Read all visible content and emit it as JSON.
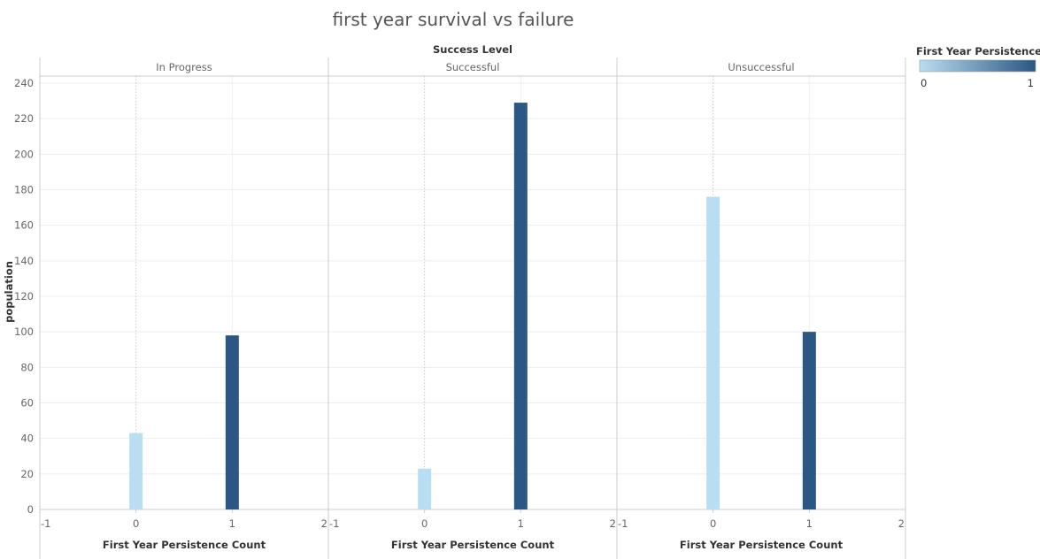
{
  "colors": {
    "low": "#b9def2",
    "high": "#2a5783",
    "grid": "#eeeeee",
    "axis": "#cccccc",
    "zero_line": "#c8c8c8"
  },
  "chart_data": {
    "type": "bar",
    "title": "first year survival vs failure",
    "facet_title": "Success Level",
    "ylabel": "population",
    "xlabel": "First Year Persistence Count",
    "ylim": [
      0,
      245
    ],
    "yticks": [
      0,
      20,
      40,
      60,
      80,
      100,
      120,
      140,
      160,
      180,
      200,
      220,
      240
    ],
    "xlim": [
      -1,
      2
    ],
    "xticks": [
      -1,
      0,
      1,
      2
    ],
    "panels": [
      {
        "name": "In Progress",
        "bars": [
          {
            "x": 0,
            "value": 43
          },
          {
            "x": 1,
            "value": 98
          }
        ]
      },
      {
        "name": "Successful",
        "bars": [
          {
            "x": 0,
            "value": 23
          },
          {
            "x": 1,
            "value": 229
          }
        ]
      },
      {
        "name": "Unsuccessful",
        "bars": [
          {
            "x": 0,
            "value": 176
          },
          {
            "x": 1,
            "value": 100
          }
        ]
      }
    ],
    "legend": {
      "title": "First Year Persistence ..",
      "min_label": "0",
      "max_label": "1",
      "placement": "top-right"
    },
    "grid": true
  }
}
